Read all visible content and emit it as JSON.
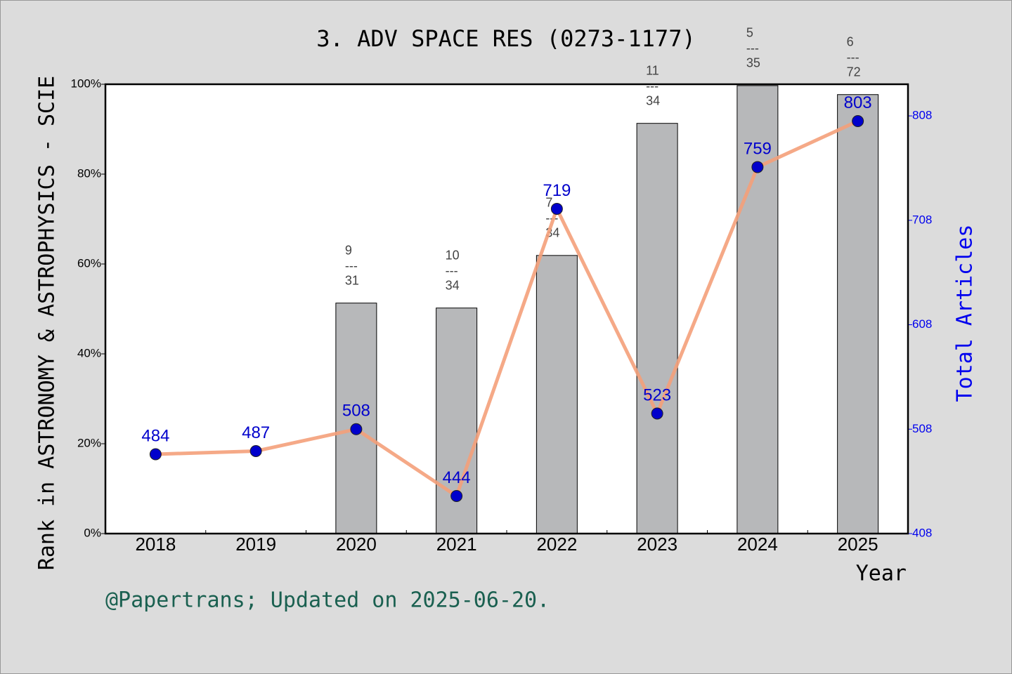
{
  "chart_data": {
    "type": "bar-line",
    "title": "3. ADV SPACE RES (0273-1177)",
    "y_label": "Rank in ASTRONOMY & ASTROPHYSICS - SCIE",
    "y2_label": "Total Articles",
    "x_label": "Year",
    "footnote": "@Papertrans; Updated on 2025-06-20.",
    "categories": [
      "2018",
      "2019",
      "2020",
      "2021",
      "2022",
      "2023",
      "2024",
      "2025"
    ],
    "series": [
      {
        "name": "Rank",
        "type": "bar",
        "color": "#b7b8ba",
        "values": [
          null,
          null,
          51.3,
          50.2,
          61.9,
          91.3,
          99.7,
          97.7
        ],
        "rank_labels": [
          null,
          null,
          [
            "9",
            "31"
          ],
          [
            "10",
            "34"
          ],
          [
            "7",
            "34"
          ],
          [
            "11",
            "34"
          ],
          [
            "5",
            "35"
          ],
          [
            "6",
            "72"
          ]
        ]
      },
      {
        "name": "Total Articles",
        "type": "line",
        "axis": "y2",
        "color": "#f4a07a",
        "marker_color": "#0000cc",
        "values": [
          484,
          487,
          508,
          444,
          719,
          523,
          759,
          803
        ]
      }
    ],
    "rank_separator": "---",
    "ylim": [
      0,
      100
    ],
    "yticks": [
      {
        "value": 0,
        "label": "0%"
      },
      {
        "value": 20,
        "label": "20%"
      },
      {
        "value": 40,
        "label": "40%"
      },
      {
        "value": 60,
        "label": "60%"
      },
      {
        "value": 80,
        "label": "80%"
      },
      {
        "value": 100,
        "label": "100%"
      }
    ],
    "y2lim": [
      408,
      838.3
    ],
    "y2ticks": [
      408,
      508,
      608,
      708,
      808
    ]
  }
}
